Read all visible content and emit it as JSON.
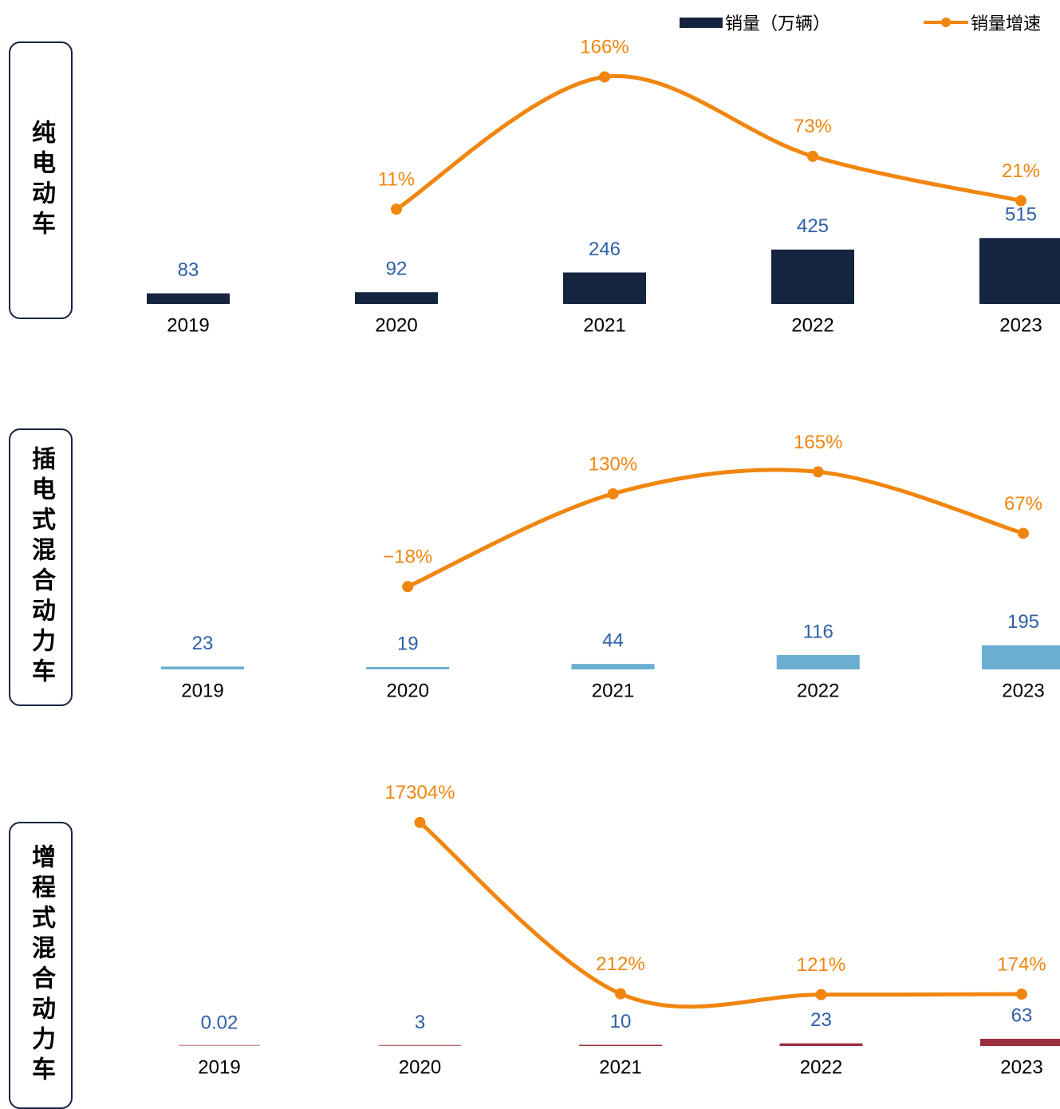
{
  "chart_data": [
    {
      "type": "bar",
      "side_label": "纯电动车",
      "categories": [
        "2019",
        "2020",
        "2021",
        "2022",
        "2023"
      ],
      "series": [
        {
          "name": "销量（万辆）",
          "color": "#15243f",
          "values": [
            83,
            92,
            246,
            425,
            515
          ]
        },
        {
          "name": "销量增速",
          "type": "line",
          "axis": "y2",
          "color": "#f0860f",
          "values": [
            null,
            11,
            166,
            73,
            21
          ],
          "value_labels": [
            null,
            "11%",
            "166%",
            "73%",
            "21%"
          ]
        }
      ],
      "ylim": [
        0,
        2000
      ],
      "y2lim": [
        -100,
        200
      ]
    },
    {
      "type": "bar",
      "side_label": "插电式混合动力车",
      "categories": [
        "2019",
        "2020",
        "2021",
        "2022",
        "2023"
      ],
      "series": [
        {
          "color": "#6aaed1",
          "values": [
            23,
            19,
            44,
            116,
            195
          ]
        },
        {
          "type": "line",
          "axis": "y2",
          "color": "#f0860f",
          "values": [
            null,
            -18,
            130,
            165,
            67
          ],
          "value_labels": [
            null,
            "−18%",
            "130%",
            "165%",
            "67%"
          ]
        }
      ],
      "ylim": [
        0,
        1800
      ],
      "y2lim": [
        -150,
        205
      ]
    },
    {
      "type": "bar",
      "side_label": "增程式混合动力车",
      "categories": [
        "2019",
        "2020",
        "2021",
        "2022",
        "2023"
      ],
      "series": [
        {
          "color": "#9b2f3e",
          "values": [
            0.02,
            3,
            10,
            23,
            63
          ]
        },
        {
          "type": "line",
          "axis": "y2",
          "color": "#f0860f",
          "values": [
            null,
            17304,
            212,
            121,
            174
          ],
          "value_labels": [
            null,
            "17304%",
            "212%",
            "121%",
            "174%"
          ]
        }
      ],
      "ylim": [
        0,
        2200
      ],
      "y2lim": [
        -5000,
        20000
      ]
    }
  ]
}
